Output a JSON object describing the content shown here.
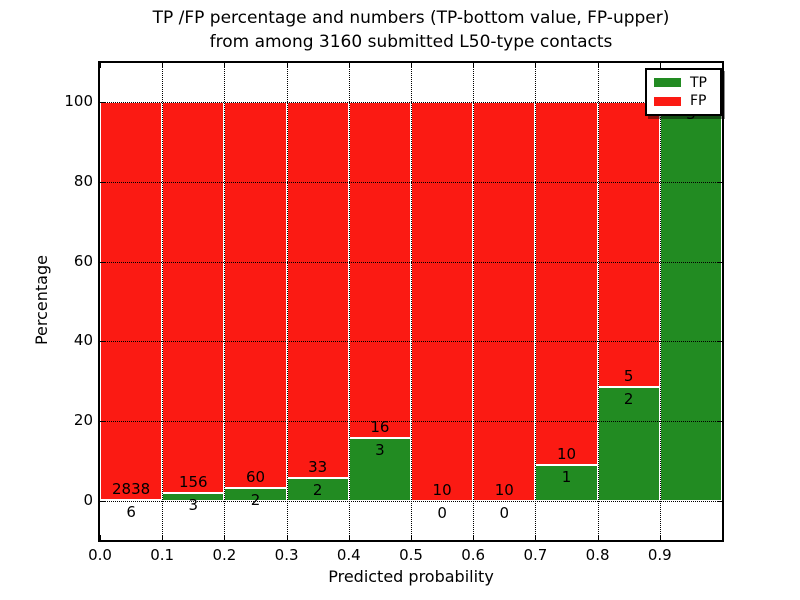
{
  "figure": {
    "background": "#ffffff"
  },
  "title_line1": "TP /FP percentage and numbers (TP-bottom value, FP-upper)",
  "title_line2": "from among 3160 submitted L50-type contacts",
  "chart_data": {
    "type": "bar",
    "stacked": true,
    "normalized_to": 100,
    "title": "TP /FP percentage and numbers (TP-bottom value, FP-upper) from among 3160 submitted L50-type contacts",
    "xlabel": "Predicted probability",
    "ylabel": "Percentage",
    "xlim": [
      0.0,
      1.0
    ],
    "ylim": [
      -10,
      110
    ],
    "yticks": [
      0,
      20,
      40,
      60,
      80,
      100
    ],
    "ytick_labels": [
      "0",
      "20",
      "40",
      "60",
      "80",
      "100"
    ],
    "xticks": [
      0.0,
      0.1,
      0.2,
      0.3,
      0.4,
      0.5,
      0.6,
      0.7,
      0.8,
      0.9
    ],
    "xtick_labels": [
      "0.0",
      "0.1",
      "0.2",
      "0.3",
      "0.4",
      "0.5",
      "0.6",
      "0.7",
      "0.8",
      "0.9"
    ],
    "grid": "dotted",
    "grid_color": "#000000",
    "colors": {
      "tp": "#228B22",
      "fp": "#FB1A13"
    },
    "legend": {
      "position": "upper right",
      "entries": [
        {
          "label": "TP",
          "color": "#228B22"
        },
        {
          "label": "FP",
          "color": "#FB1A13"
        }
      ]
    },
    "bins": [
      {
        "x0": 0.0,
        "x1": 0.1,
        "tp": 6,
        "fp": 2838,
        "tp_label": "6",
        "fp_label": "2838",
        "tp_pct": 0.21
      },
      {
        "x0": 0.1,
        "x1": 0.2,
        "tp": 3,
        "fp": 156,
        "tp_label": "3",
        "fp_label": "156",
        "tp_pct": 1.89
      },
      {
        "x0": 0.2,
        "x1": 0.3,
        "tp": 2,
        "fp": 60,
        "tp_label": "2",
        "fp_label": "60",
        "tp_pct": 3.23
      },
      {
        "x0": 0.3,
        "x1": 0.4,
        "tp": 2,
        "fp": 33,
        "tp_label": "2",
        "fp_label": "33",
        "tp_pct": 5.71
      },
      {
        "x0": 0.4,
        "x1": 0.5,
        "tp": 3,
        "fp": 16,
        "tp_label": "3",
        "fp_label": "16",
        "tp_pct": 15.79
      },
      {
        "x0": 0.5,
        "x1": 0.6,
        "tp": 0,
        "fp": 10,
        "tp_label": "0",
        "fp_label": "10",
        "tp_pct": 0
      },
      {
        "x0": 0.6,
        "x1": 0.7,
        "tp": 0,
        "fp": 10,
        "tp_label": "0",
        "fp_label": "10",
        "tp_pct": 0
      },
      {
        "x0": 0.7,
        "x1": 0.8,
        "tp": 1,
        "fp": 10,
        "tp_label": "1",
        "fp_label": "10",
        "tp_pct": 9.09
      },
      {
        "x0": 0.8,
        "x1": 0.9,
        "tp": 2,
        "fp": 5,
        "tp_label": "2",
        "fp_label": "5",
        "tp_pct": 28.57
      },
      {
        "x0": 0.9,
        "x1": 1.0,
        "tp": 3,
        "fp": 0,
        "tp_label": "3",
        "fp_label": "",
        "tp_pct": 100
      }
    ]
  }
}
